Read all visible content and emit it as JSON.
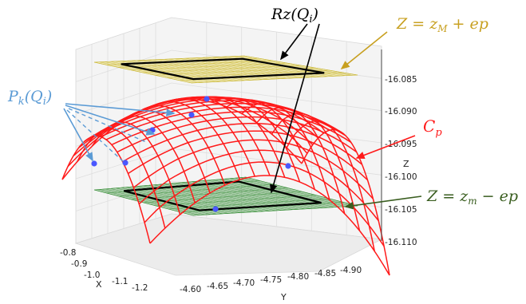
{
  "annotations": {
    "rz": "Rz(Q",
    "rz_sub": "i",
    "rz_end": ")",
    "zmax": "Z = z",
    "zmax_sub": "M",
    "zmax_end": " + ep",
    "zmin": "Z = z",
    "zmin_sub": "m",
    "zmin_end": " − ep",
    "cp": "C",
    "cp_sub": "p",
    "pk": "P",
    "pk_sub": "k",
    "pk_mid": "(Q",
    "pk_sub2": "i",
    "pk_end": ")"
  },
  "colors": {
    "upper_plane": "#e3d24a",
    "lower_plane": "#2f8a2f",
    "surface": "#ff1a1a",
    "points": "#4a57ff",
    "zmax_text": "#c8a020",
    "zmin_text": "#3a5e20",
    "cp_text": "#ff1a1a",
    "pk_text": "#5b9bd5",
    "rz_text": "#000000"
  },
  "axes": {
    "x_label": "X",
    "y_label": "Y",
    "z_label": "Z",
    "x_ticks": [
      "-0.8",
      "-0.9",
      "-1.0",
      "-1.1",
      "-1.2"
    ],
    "y_ticks": [
      "-4.60",
      "-4.65",
      "-4.70",
      "-4.75",
      "-4.80",
      "-4.85",
      "-4.90"
    ],
    "z_ticks": [
      "-16.085",
      "-16.090",
      "-16.095",
      "-16.100",
      "-16.105",
      "-16.110"
    ]
  }
}
